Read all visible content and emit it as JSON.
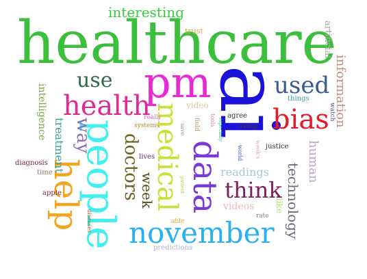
{
  "word_cloud": {
    "words": [
      {
        "text": "healthcare",
        "color": "#3cbf3c"
      },
      {
        "text": "ai",
        "color": "#1a12d8"
      },
      {
        "text": "pm",
        "color": "#e52ad6"
      },
      {
        "text": "people",
        "color": "#3ff0ee"
      },
      {
        "text": "help",
        "color": "#f2a51c"
      },
      {
        "text": "november",
        "color": "#2ab0ef"
      },
      {
        "text": "data",
        "color": "#7b38d8"
      },
      {
        "text": "medical",
        "color": "#c6e23a"
      },
      {
        "text": "bias",
        "color": "#e51b2b"
      },
      {
        "text": "health",
        "color": "#e02a92"
      },
      {
        "text": "used",
        "color": "#395c8f"
      },
      {
        "text": "use",
        "color": "#2e6b48"
      },
      {
        "text": "think",
        "color": "#7a1e5c"
      },
      {
        "text": "doctors",
        "color": "#706125"
      },
      {
        "text": "way",
        "color": "#8a6fb6"
      },
      {
        "text": "interesting",
        "color": "#2fcf37"
      },
      {
        "text": "technology",
        "color": "#6a6a7a"
      },
      {
        "text": "information",
        "color": "#c88a7a"
      },
      {
        "text": "human",
        "color": "#b9a6cf"
      },
      {
        "text": "week",
        "color": "#5a4b1c"
      },
      {
        "text": "treatment",
        "color": "#33a38f"
      },
      {
        "text": "intelligence",
        "color": "#74a93b"
      },
      {
        "text": "artificial",
        "color": "#a9a9a0"
      },
      {
        "text": "readings",
        "color": "#a9c6dc"
      },
      {
        "text": "videos",
        "color": "#f0b7b7"
      },
      {
        "text": "video",
        "color": "#d9c6a4"
      },
      {
        "text": "trust",
        "color": "#e8a54b"
      },
      {
        "text": "like",
        "color": "#b1e66a"
      },
      {
        "text": "diagnosis",
        "color": "#6a1f3f"
      },
      {
        "text": "time",
        "color": "#8f7a6a"
      },
      {
        "text": "apple",
        "color": "#7a2a2a"
      },
      {
        "text": "lives",
        "color": "#5a2e7a"
      },
      {
        "text": "justice",
        "color": "#3a2a2a"
      },
      {
        "text": "agree",
        "color": "#2a3a2a"
      },
      {
        "text": "using",
        "color": "#4a3a1a"
      },
      {
        "text": "things",
        "color": "#3aa0a0"
      },
      {
        "text": "watch",
        "color": "#5a4aa0"
      },
      {
        "text": "really",
        "color": "#e06fd0"
      },
      {
        "text": "systems",
        "color": "#b08a2a"
      },
      {
        "text": "save",
        "color": "#9a8aa0"
      },
      {
        "text": "field",
        "color": "#b09a6a"
      },
      {
        "text": "tools",
        "color": "#d87ab0"
      },
      {
        "text": "especially",
        "color": "#4ac0a0"
      },
      {
        "text": "world",
        "color": "#3060c0"
      },
      {
        "text": "week's",
        "color": "#e3a3bf"
      },
      {
        "text": "patient",
        "color": "#c8c84a"
      },
      {
        "text": "rate",
        "color": "#8a7a9a"
      },
      {
        "text": "able",
        "color": "#f0a040"
      },
      {
        "text": "predictions",
        "color": "#b0b0d0"
      },
      {
        "text": "diseases",
        "color": "#8a6a3a"
      }
    ]
  }
}
